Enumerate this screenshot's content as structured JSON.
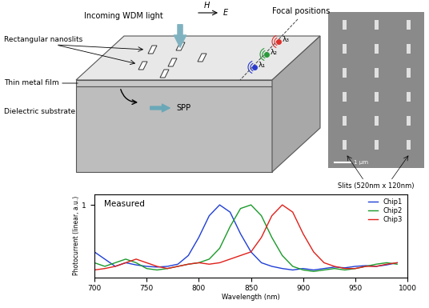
{
  "diagram": {
    "incoming": "Incoming WDM light",
    "field_h": "H",
    "field_e": "E",
    "focal_positions": "Focal positions",
    "wavelengths": [
      {
        "label": "λ₃",
        "color": "#e0302a"
      },
      {
        "label": "λ₂",
        "color": "#2a9a3a"
      },
      {
        "label": "λ₁",
        "color": "#2a3ad0"
      }
    ],
    "nanoslits": "Rectangular nanoslits",
    "metal_film": "Thin metal film",
    "substrate": "Dielectric substrate",
    "spp": "SPP"
  },
  "micrograph": {
    "scale_bar": "1 μm",
    "caption": "Slits (520nm x 120nm)"
  },
  "chart_data": {
    "type": "line",
    "title": "Measured",
    "x_label": "Wavelength (nm)",
    "y_label": "Photocurrent (linear, a.u.)",
    "x": [
      700,
      710,
      720,
      730,
      740,
      750,
      760,
      770,
      780,
      790,
      800,
      810,
      820,
      830,
      840,
      850,
      860,
      870,
      880,
      890,
      900,
      910,
      920,
      930,
      940,
      950,
      960,
      970,
      980,
      990
    ],
    "series": [
      {
        "name": "Chip1",
        "color": "#1f3fd6",
        "values": [
          0.35,
          0.25,
          0.15,
          0.2,
          0.17,
          0.15,
          0.14,
          0.15,
          0.18,
          0.3,
          0.55,
          0.85,
          1.0,
          0.9,
          0.6,
          0.35,
          0.2,
          0.15,
          0.12,
          0.1,
          0.12,
          0.1,
          0.12,
          0.14,
          0.13,
          0.15,
          0.16,
          0.15,
          0.17,
          0.2
        ]
      },
      {
        "name": "Chip2",
        "color": "#1a9a2a",
        "values": [
          0.2,
          0.15,
          0.2,
          0.25,
          0.2,
          0.12,
          0.1,
          0.12,
          0.15,
          0.18,
          0.2,
          0.25,
          0.4,
          0.7,
          0.95,
          1.0,
          0.85,
          0.55,
          0.3,
          0.15,
          0.1,
          0.08,
          0.1,
          0.12,
          0.1,
          0.12,
          0.15,
          0.18,
          0.2,
          0.18
        ]
      },
      {
        "name": "Chip3",
        "color": "#e0201a",
        "values": [
          0.1,
          0.12,
          0.15,
          0.2,
          0.25,
          0.2,
          0.15,
          0.12,
          0.15,
          0.18,
          0.2,
          0.18,
          0.2,
          0.25,
          0.3,
          0.35,
          0.55,
          0.85,
          1.0,
          0.9,
          0.6,
          0.35,
          0.2,
          0.15,
          0.12,
          0.12,
          0.15,
          0.15,
          0.18,
          0.2
        ]
      }
    ],
    "xlim": [
      700,
      1000
    ],
    "xticks": [
      700,
      750,
      800,
      850,
      900,
      950,
      1000
    ],
    "ylim": [
      0,
      1.15
    ],
    "yticks": [
      1
    ],
    "grid": false,
    "legend": "upper right"
  }
}
